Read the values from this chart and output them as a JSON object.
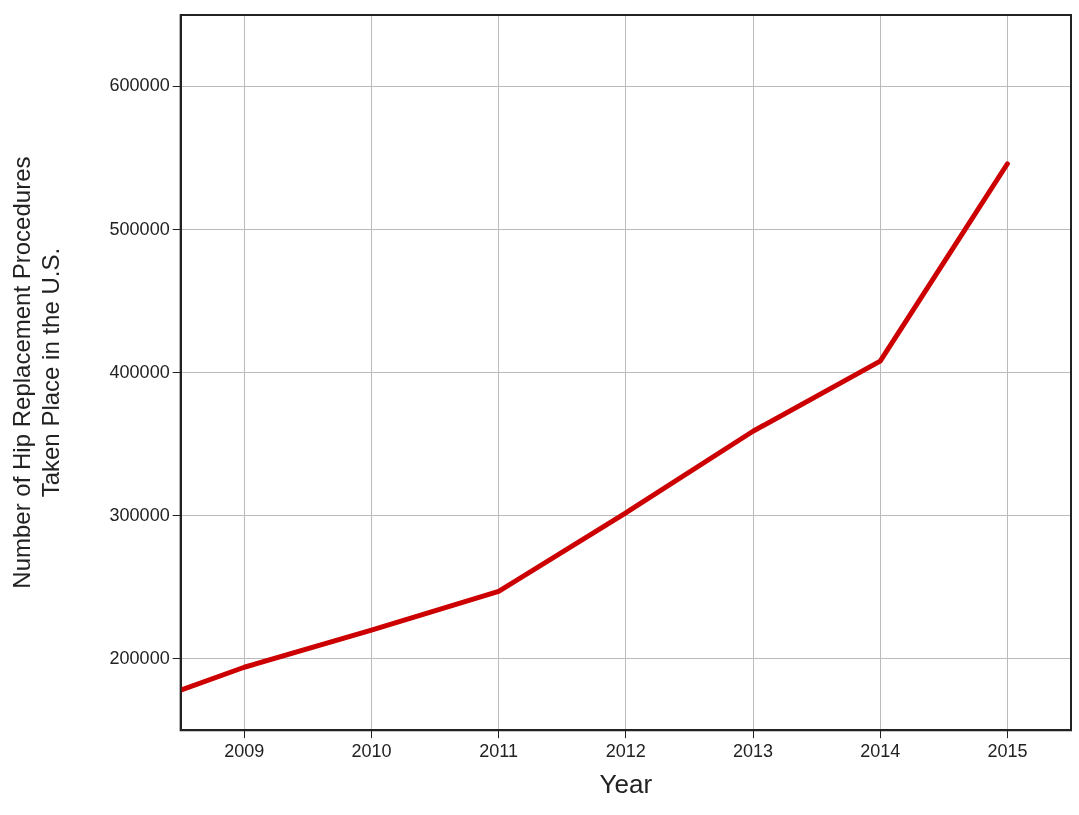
{
  "chart_data": {
    "type": "line",
    "xlabel": "Year",
    "ylabel": "Number of Hip Replacement Procedures\nTaken Place in the U.S.",
    "x": [
      2008.5,
      2009,
      2010,
      2011,
      2012,
      2013,
      2014,
      2015
    ],
    "series": [
      {
        "color": "#cc0000",
        "values": [
          178000,
          194000,
          220000,
          247000,
          302000,
          359000,
          408000,
          546000
        ]
      }
    ],
    "xlim": [
      2008.5,
      2015.5
    ],
    "xticks": [
      2009,
      2010,
      2011,
      2012,
      2013,
      2014,
      2015
    ],
    "ylim": [
      150000,
      650000
    ],
    "yticks": [
      200000,
      300000,
      400000,
      500000,
      600000
    ],
    "grid": true,
    "legend": false,
    "marker": "none",
    "line_style": "solid"
  }
}
